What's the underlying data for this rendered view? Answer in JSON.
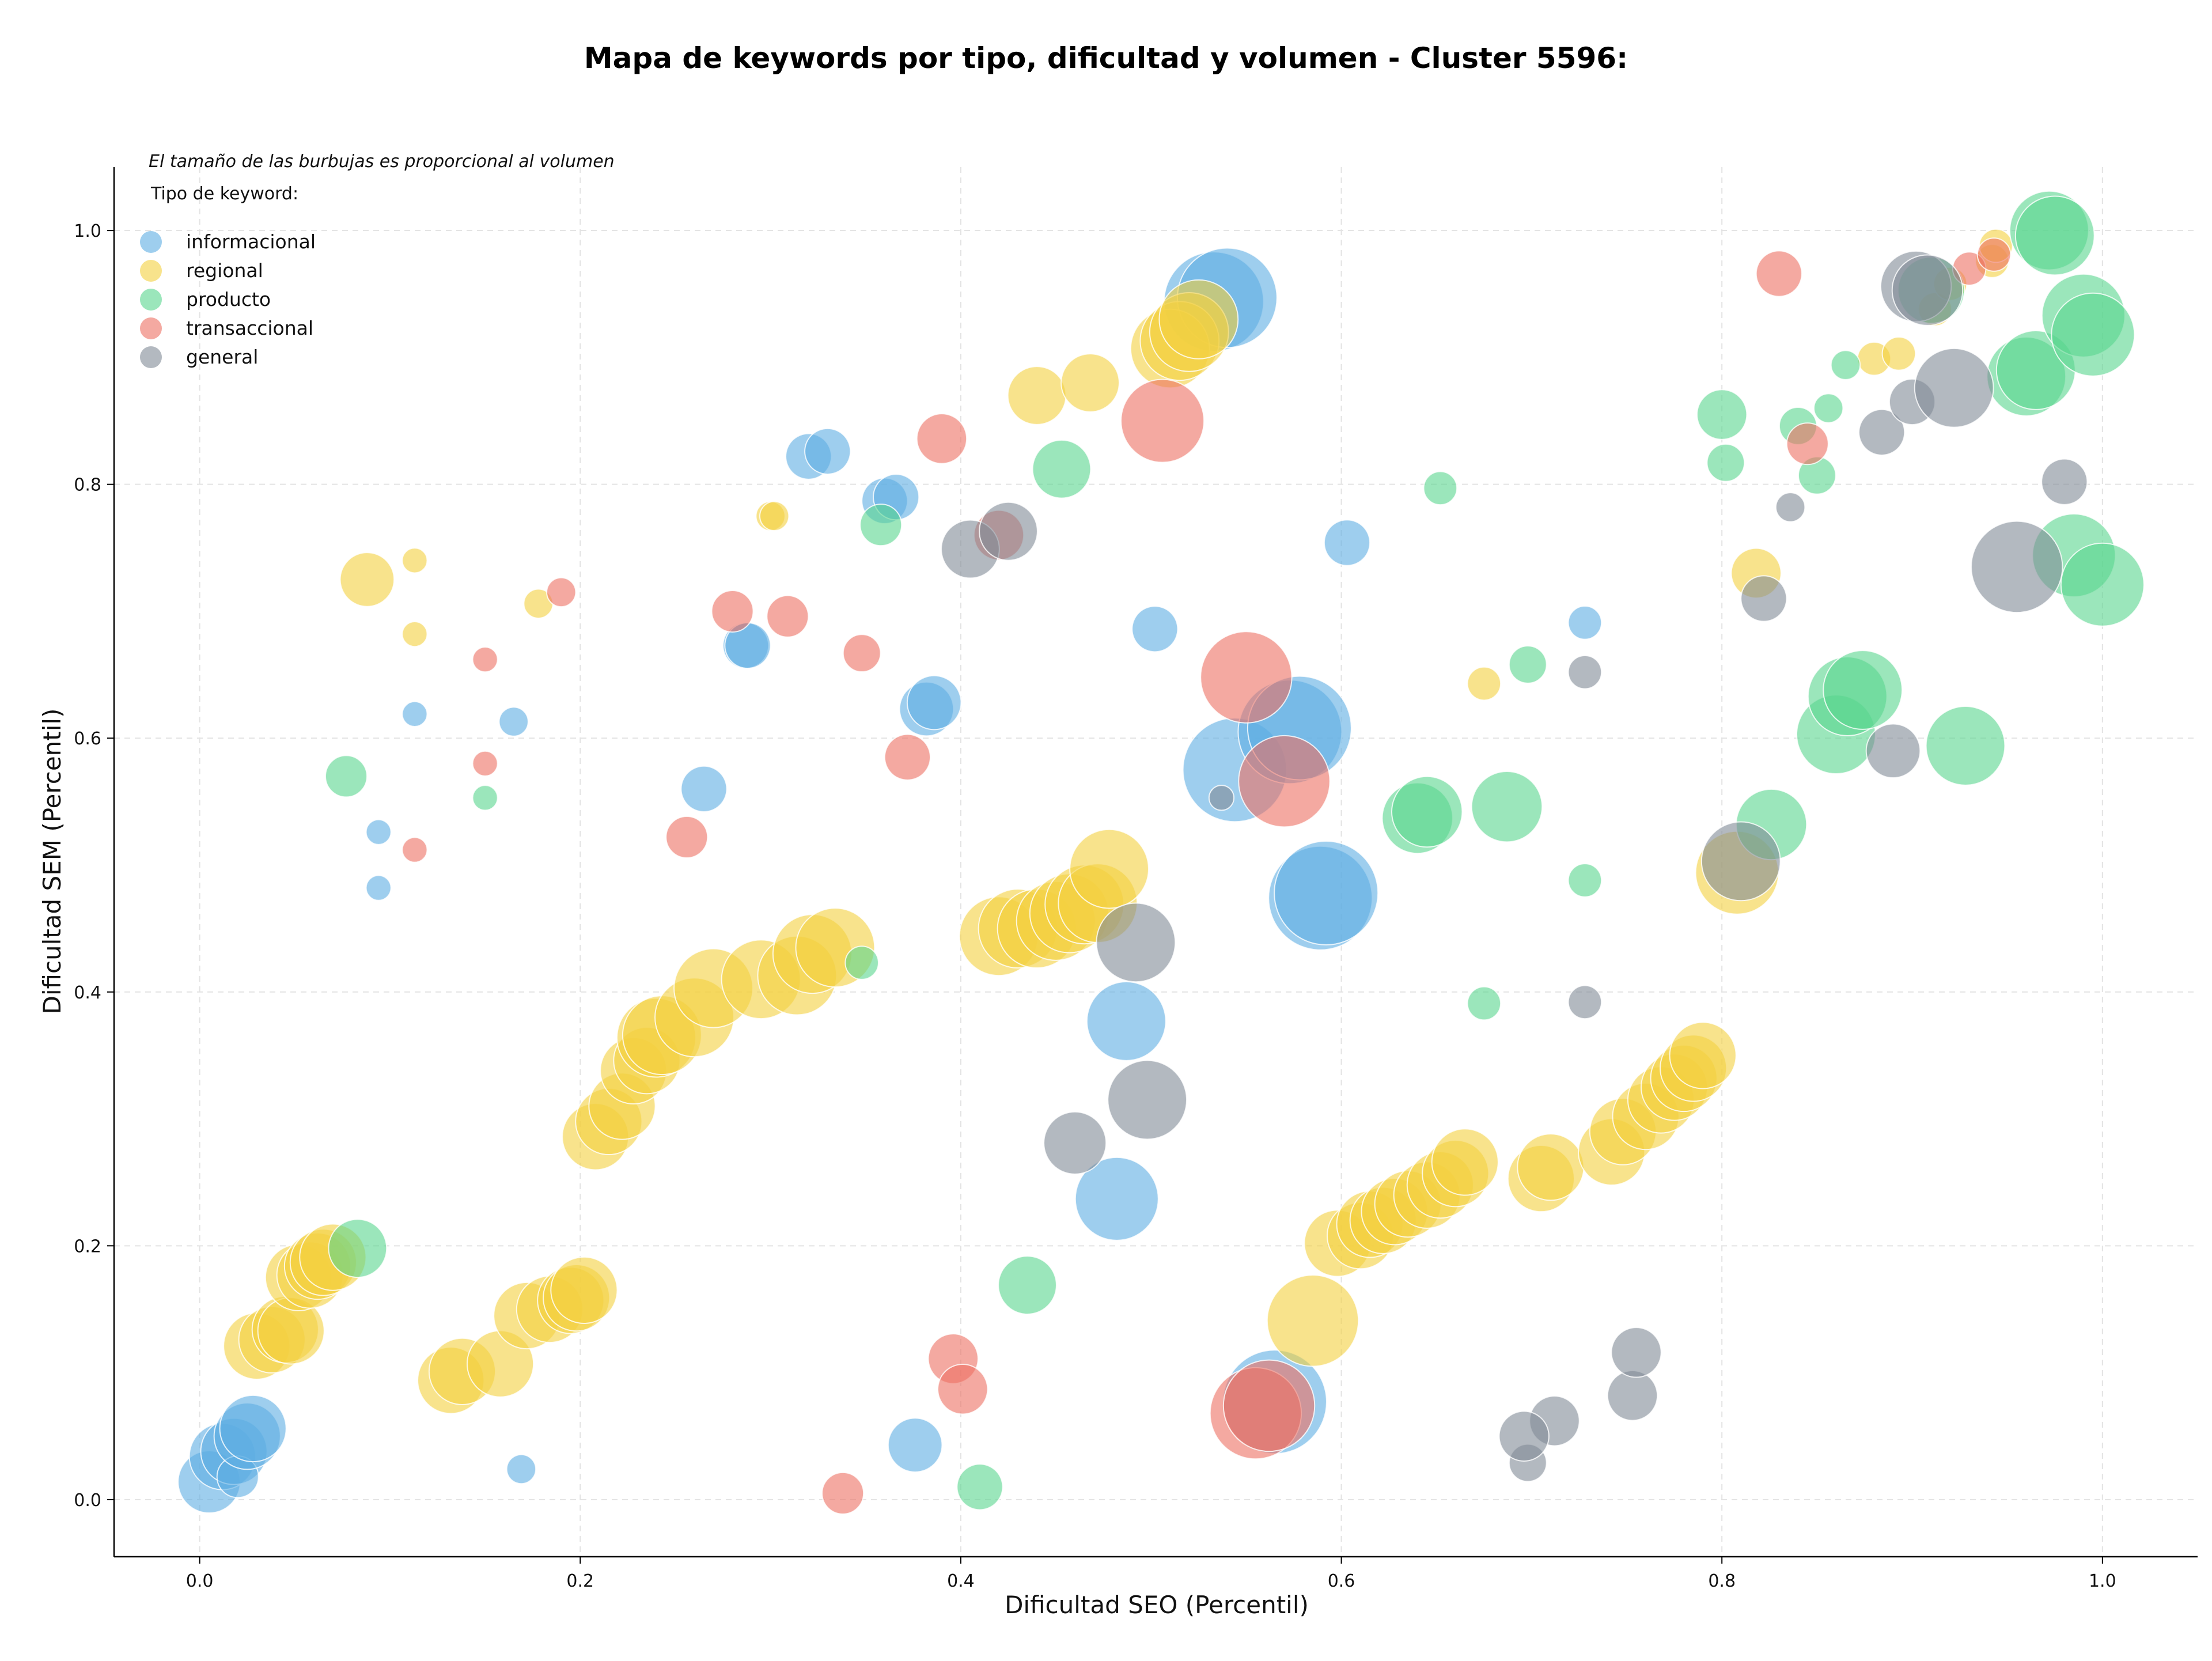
{
  "chart_data": {
    "type": "scatter",
    "title": "Mapa de keywords por tipo, dificultad y volumen - Cluster 5596:",
    "xlabel": "Dificultad SEO (Percentil)",
    "ylabel": "Dificultad SEM (Percentil)",
    "xlim": [
      -0.045,
      1.05
    ],
    "ylim": [
      -0.045,
      1.05
    ],
    "x_ticks": [
      "0.0",
      "0.2",
      "0.4",
      "0.6",
      "0.8",
      "1.0"
    ],
    "y_ticks": [
      "0.0",
      "0.2",
      "0.4",
      "0.6",
      "0.8",
      "1.0"
    ],
    "grid": true,
    "legend_position": "top-left",
    "size_note": "El tamaño de las burbujas es proporcional al volumen",
    "legend_title": "Tipo de keyword:",
    "series": [
      {
        "name": "informacional",
        "color": "#5dade2",
        "points": [
          [
            0.005,
            0.014,
            1.5
          ],
          [
            0.012,
            0.034,
            1.6
          ],
          [
            0.018,
            0.038,
            1.6
          ],
          [
            0.02,
            0.018,
            1.0
          ],
          [
            0.025,
            0.05,
            1.6
          ],
          [
            0.028,
            0.056,
            1.6
          ],
          [
            0.094,
            0.526,
            0.6
          ],
          [
            0.094,
            0.482,
            0.6
          ],
          [
            0.113,
            0.619,
            0.6
          ],
          [
            0.165,
            0.613,
            0.7
          ],
          [
            0.169,
            0.024,
            0.7
          ],
          [
            0.265,
            0.56,
            1.1
          ],
          [
            0.287,
            0.673,
            1.1
          ],
          [
            0.288,
            0.673,
            1.1
          ],
          [
            0.32,
            0.822,
            1.1
          ],
          [
            0.33,
            0.826,
            1.1
          ],
          [
            0.36,
            0.787,
            1.1
          ],
          [
            0.366,
            0.79,
            1.1
          ],
          [
            0.376,
            0.043,
            1.3
          ],
          [
            0.382,
            0.623,
            1.3
          ],
          [
            0.386,
            0.628,
            1.3
          ],
          [
            0.482,
            0.237,
            2.0
          ],
          [
            0.487,
            0.377,
            1.9
          ],
          [
            0.502,
            0.686,
            1.1
          ],
          [
            0.533,
            0.944,
            2.4
          ],
          [
            0.54,
            0.947,
            2.4
          ],
          [
            0.544,
            0.575,
            2.5
          ],
          [
            0.565,
            0.077,
            2.5
          ],
          [
            0.573,
            0.605,
            2.5
          ],
          [
            0.578,
            0.608,
            2.5
          ],
          [
            0.589,
            0.474,
            2.5
          ],
          [
            0.592,
            0.478,
            2.5
          ],
          [
            0.603,
            0.754,
            1.1
          ],
          [
            0.728,
            0.691,
            0.8
          ]
        ]
      },
      {
        "name": "regional",
        "color": "#f4d03f",
        "points": [
          [
            0.03,
            0.121,
            1.6
          ],
          [
            0.038,
            0.126,
            1.6
          ],
          [
            0.045,
            0.134,
            1.6
          ],
          [
            0.048,
            0.133,
            1.6
          ],
          [
            0.052,
            0.175,
            1.6
          ],
          [
            0.058,
            0.177,
            1.6
          ],
          [
            0.062,
            0.184,
            1.6
          ],
          [
            0.065,
            0.187,
            1.6
          ],
          [
            0.07,
            0.191,
            1.6
          ],
          [
            0.088,
            0.725,
            1.3
          ],
          [
            0.113,
            0.74,
            0.6
          ],
          [
            0.113,
            0.682,
            0.6
          ],
          [
            0.132,
            0.094,
            1.6
          ],
          [
            0.138,
            0.101,
            1.6
          ],
          [
            0.158,
            0.107,
            1.6
          ],
          [
            0.172,
            0.145,
            1.6
          ],
          [
            0.184,
            0.15,
            1.6
          ],
          [
            0.195,
            0.157,
            1.6
          ],
          [
            0.198,
            0.159,
            1.6
          ],
          [
            0.202,
            0.165,
            1.6
          ],
          [
            0.178,
            0.706,
            0.7
          ],
          [
            0.208,
            0.286,
            1.6
          ],
          [
            0.215,
            0.298,
            1.6
          ],
          [
            0.222,
            0.31,
            1.6
          ],
          [
            0.228,
            0.338,
            1.6
          ],
          [
            0.235,
            0.346,
            1.6
          ],
          [
            0.24,
            0.364,
            1.9
          ],
          [
            0.243,
            0.366,
            1.9
          ],
          [
            0.26,
            0.38,
            1.9
          ],
          [
            0.27,
            0.403,
            1.9
          ],
          [
            0.3,
            0.775,
            0.7
          ],
          [
            0.302,
            0.775,
            0.7
          ],
          [
            0.295,
            0.41,
            1.9
          ],
          [
            0.314,
            0.413,
            1.9
          ],
          [
            0.322,
            0.43,
            1.9
          ],
          [
            0.334,
            0.435,
            1.9
          ],
          [
            0.42,
            0.444,
            1.9
          ],
          [
            0.43,
            0.45,
            1.9
          ],
          [
            0.44,
            0.45,
            1.9
          ],
          [
            0.45,
            0.456,
            1.9
          ],
          [
            0.457,
            0.462,
            1.9
          ],
          [
            0.465,
            0.469,
            1.9
          ],
          [
            0.472,
            0.47,
            1.9
          ],
          [
            0.478,
            0.497,
            1.9
          ],
          [
            0.44,
            0.87,
            1.4
          ],
          [
            0.468,
            0.88,
            1.4
          ],
          [
            0.51,
            0.907,
            1.9
          ],
          [
            0.515,
            0.913,
            1.9
          ],
          [
            0.52,
            0.92,
            1.9
          ],
          [
            0.525,
            0.93,
            1.9
          ],
          [
            0.585,
            0.141,
            2.2
          ],
          [
            0.598,
            0.202,
            1.6
          ],
          [
            0.61,
            0.208,
            1.6
          ],
          [
            0.615,
            0.217,
            1.6
          ],
          [
            0.622,
            0.22,
            1.6
          ],
          [
            0.628,
            0.227,
            1.6
          ],
          [
            0.635,
            0.233,
            1.6
          ],
          [
            0.645,
            0.24,
            1.6
          ],
          [
            0.652,
            0.248,
            1.6
          ],
          [
            0.66,
            0.257,
            1.6
          ],
          [
            0.665,
            0.266,
            1.6
          ],
          [
            0.675,
            0.643,
            0.8
          ],
          [
            0.705,
            0.253,
            1.6
          ],
          [
            0.71,
            0.262,
            1.6
          ],
          [
            0.742,
            0.274,
            1.6
          ],
          [
            0.748,
            0.29,
            1.6
          ],
          [
            0.76,
            0.302,
            1.6
          ],
          [
            0.768,
            0.315,
            1.6
          ],
          [
            0.775,
            0.325,
            1.6
          ],
          [
            0.78,
            0.332,
            1.6
          ],
          [
            0.785,
            0.34,
            1.6
          ],
          [
            0.79,
            0.35,
            1.6
          ],
          [
            0.808,
            0.494,
            2.0
          ],
          [
            0.818,
            0.73,
            1.2
          ],
          [
            0.88,
            0.899,
            0.8
          ],
          [
            0.893,
            0.903,
            0.8
          ],
          [
            0.912,
            0.938,
            0.8
          ],
          [
            0.92,
            0.958,
            0.8
          ],
          [
            0.942,
            0.976,
            0.8
          ],
          [
            0.944,
            0.988,
            0.8
          ]
        ]
      },
      {
        "name": "producto",
        "color": "#58d68d",
        "points": [
          [
            0.077,
            0.57,
            1.0
          ],
          [
            0.083,
            0.198,
            1.4
          ],
          [
            0.15,
            0.553,
            0.6
          ],
          [
            0.348,
            0.423,
            0.8
          ],
          [
            0.358,
            0.768,
            1.0
          ],
          [
            0.41,
            0.01,
            1.1
          ],
          [
            0.435,
            0.169,
            1.4
          ],
          [
            0.453,
            0.812,
            1.4
          ],
          [
            0.64,
            0.537,
            1.7
          ],
          [
            0.645,
            0.542,
            1.7
          ],
          [
            0.652,
            0.797,
            0.8
          ],
          [
            0.675,
            0.391,
            0.8
          ],
          [
            0.687,
            0.546,
            1.7
          ],
          [
            0.698,
            0.658,
            0.9
          ],
          [
            0.728,
            0.488,
            0.8
          ],
          [
            0.8,
            0.855,
            1.2
          ],
          [
            0.802,
            0.817,
            0.9
          ],
          [
            0.826,
            0.532,
            1.7
          ],
          [
            0.84,
            0.846,
            0.9
          ],
          [
            0.85,
            0.807,
            0.9
          ],
          [
            0.856,
            0.86,
            0.7
          ],
          [
            0.865,
            0.894,
            0.7
          ],
          [
            0.86,
            0.603,
            1.9
          ],
          [
            0.866,
            0.633,
            1.9
          ],
          [
            0.874,
            0.638,
            1.9
          ],
          [
            0.91,
            0.953,
            1.6
          ],
          [
            0.928,
            0.594,
            1.9
          ],
          [
            0.96,
            0.885,
            1.9
          ],
          [
            0.965,
            0.89,
            1.9
          ],
          [
            0.972,
            1.0,
            1.9
          ],
          [
            0.975,
            0.996,
            1.9
          ],
          [
            0.985,
            0.744,
            2.0
          ],
          [
            0.99,
            0.933,
            2.0
          ],
          [
            0.995,
            0.918,
            2.0
          ],
          [
            1.0,
            0.721,
            2.0
          ]
        ]
      },
      {
        "name": "transaccional",
        "color": "#ec7063",
        "points": [
          [
            0.113,
            0.512,
            0.6
          ],
          [
            0.15,
            0.662,
            0.6
          ],
          [
            0.15,
            0.58,
            0.6
          ],
          [
            0.19,
            0.715,
            0.7
          ],
          [
            0.256,
            0.522,
            1.0
          ],
          [
            0.28,
            0.7,
            1.0
          ],
          [
            0.309,
            0.696,
            1.0
          ],
          [
            0.338,
            0.005,
            1.0
          ],
          [
            0.348,
            0.667,
            0.9
          ],
          [
            0.372,
            0.585,
            1.1
          ],
          [
            0.39,
            0.836,
            1.2
          ],
          [
            0.396,
            0.111,
            1.2
          ],
          [
            0.401,
            0.087,
            1.2
          ],
          [
            0.42,
            0.76,
            1.2
          ],
          [
            0.506,
            0.85,
            2.0
          ],
          [
            0.55,
            0.648,
            2.2
          ],
          [
            0.555,
            0.068,
            2.2
          ],
          [
            0.562,
            0.074,
            2.2
          ],
          [
            0.57,
            0.566,
            2.2
          ],
          [
            0.83,
            0.966,
            1.1
          ],
          [
            0.845,
            0.832,
            1.0
          ],
          [
            0.93,
            0.97,
            0.8
          ],
          [
            0.943,
            0.981,
            0.8
          ]
        ]
      },
      {
        "name": "general",
        "color": "#808b96",
        "points": [
          [
            0.405,
            0.749,
            1.4
          ],
          [
            0.425,
            0.763,
            1.4
          ],
          [
            0.46,
            0.281,
            1.5
          ],
          [
            0.492,
            0.439,
            1.9
          ],
          [
            0.498,
            0.315,
            1.9
          ],
          [
            0.537,
            0.553,
            0.6
          ],
          [
            0.698,
            0.029,
            0.9
          ],
          [
            0.712,
            0.062,
            1.2
          ],
          [
            0.728,
            0.652,
            0.8
          ],
          [
            0.728,
            0.392,
            0.8
          ],
          [
            0.753,
            0.082,
            1.2
          ],
          [
            0.755,
            0.116,
            1.2
          ],
          [
            0.696,
            0.05,
            1.2
          ],
          [
            0.81,
            0.503,
            1.9
          ],
          [
            0.822,
            0.71,
            1.1
          ],
          [
            0.836,
            0.782,
            0.7
          ],
          [
            0.884,
            0.841,
            1.1
          ],
          [
            0.89,
            0.59,
            1.3
          ],
          [
            0.9,
            0.865,
            1.1
          ],
          [
            0.902,
            0.956,
            1.7
          ],
          [
            0.908,
            0.953,
            1.7
          ],
          [
            0.922,
            0.876,
            1.9
          ],
          [
            0.955,
            0.735,
            2.2
          ],
          [
            0.98,
            0.802,
            1.1
          ]
        ]
      }
    ]
  }
}
